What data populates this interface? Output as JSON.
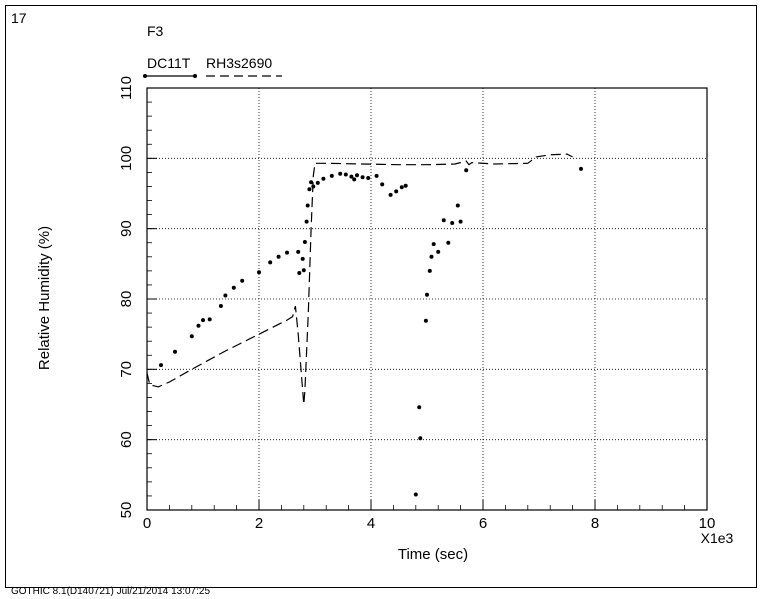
{
  "page": {
    "panel_number": "17",
    "footer": "GOTHIC 8.1(D140721) Jul/21/2014 13:07:25"
  },
  "chart_data": {
    "type": "scatter",
    "title": "F3",
    "xlabel": "Time (sec)",
    "ylabel": "Relative Humidity (%)",
    "x_multiplier_label": "X1e3",
    "xlim": [
      0,
      10
    ],
    "ylim": [
      50,
      110
    ],
    "x_ticks": [
      "0",
      "2",
      "4",
      "6",
      "8",
      "10"
    ],
    "y_ticks": [
      "50",
      "60",
      "70",
      "80",
      "90",
      "100",
      "110"
    ],
    "grid": true,
    "legend_position": "top-left",
    "series": [
      {
        "name": "DC11T",
        "style": "points",
        "color": "#000000",
        "points": [
          [
            0.25,
            70.6
          ],
          [
            0.5,
            72.5
          ],
          [
            0.8,
            74.7
          ],
          [
            0.92,
            76.2
          ],
          [
            1.0,
            77.0
          ],
          [
            1.12,
            77.1
          ],
          [
            1.32,
            79.0
          ],
          [
            1.4,
            80.5
          ],
          [
            1.55,
            81.6
          ],
          [
            1.7,
            82.6
          ],
          [
            2.0,
            83.8
          ],
          [
            2.2,
            85.2
          ],
          [
            2.35,
            86.0
          ],
          [
            2.5,
            86.6
          ],
          [
            2.7,
            86.7
          ],
          [
            2.72,
            83.7
          ],
          [
            2.78,
            85.7
          ],
          [
            2.8,
            84.1
          ],
          [
            2.82,
            88.1
          ],
          [
            2.85,
            91.0
          ],
          [
            2.87,
            93.3
          ],
          [
            2.9,
            95.6
          ],
          [
            2.93,
            96.6
          ],
          [
            2.97,
            96.0
          ],
          [
            3.05,
            96.5
          ],
          [
            3.15,
            97.1
          ],
          [
            3.3,
            97.5
          ],
          [
            3.45,
            97.8
          ],
          [
            3.55,
            97.7
          ],
          [
            3.65,
            97.4
          ],
          [
            3.7,
            97.0
          ],
          [
            3.75,
            97.6
          ],
          [
            3.85,
            97.3
          ],
          [
            3.95,
            97.2
          ],
          [
            4.1,
            97.5
          ],
          [
            4.2,
            96.3
          ],
          [
            4.35,
            94.8
          ],
          [
            4.45,
            95.3
          ],
          [
            4.55,
            95.9
          ],
          [
            4.62,
            96.1
          ],
          [
            4.8,
            52.2
          ],
          [
            4.86,
            64.6
          ],
          [
            4.88,
            60.2
          ],
          [
            4.98,
            76.9
          ],
          [
            5.0,
            80.6
          ],
          [
            5.05,
            84.0
          ],
          [
            5.08,
            86.0
          ],
          [
            5.12,
            87.8
          ],
          [
            5.2,
            86.7
          ],
          [
            5.3,
            91.2
          ],
          [
            5.38,
            88.0
          ],
          [
            5.45,
            90.8
          ],
          [
            5.55,
            93.3
          ],
          [
            5.6,
            91.0
          ],
          [
            5.7,
            98.3
          ],
          [
            7.75,
            98.5
          ]
        ]
      },
      {
        "name": "RH3s2690",
        "style": "dashed",
        "color": "#000000",
        "points": [
          [
            0.0,
            69.5
          ],
          [
            0.05,
            67.8
          ],
          [
            0.2,
            67.5
          ],
          [
            0.4,
            68.2
          ],
          [
            0.8,
            70.0
          ],
          [
            1.4,
            72.6
          ],
          [
            2.0,
            75.0
          ],
          [
            2.5,
            77.0
          ],
          [
            2.6,
            77.5
          ],
          [
            2.65,
            79.0
          ],
          [
            2.7,
            75.0
          ],
          [
            2.75,
            70.0
          ],
          [
            2.8,
            65.0
          ],
          [
            2.82,
            67.0
          ],
          [
            2.88,
            78.0
          ],
          [
            2.93,
            90.0
          ],
          [
            2.97,
            97.5
          ],
          [
            3.0,
            99.3
          ],
          [
            3.2,
            99.3
          ],
          [
            4.5,
            99.1
          ],
          [
            5.0,
            99.1
          ],
          [
            5.5,
            99.2
          ],
          [
            5.7,
            99.6
          ],
          [
            5.75,
            99.1
          ],
          [
            5.8,
            99.4
          ],
          [
            6.2,
            99.2
          ],
          [
            6.8,
            99.3
          ],
          [
            6.95,
            100.2
          ],
          [
            7.2,
            100.5
          ],
          [
            7.5,
            100.6
          ],
          [
            7.6,
            100.2
          ]
        ]
      }
    ]
  }
}
